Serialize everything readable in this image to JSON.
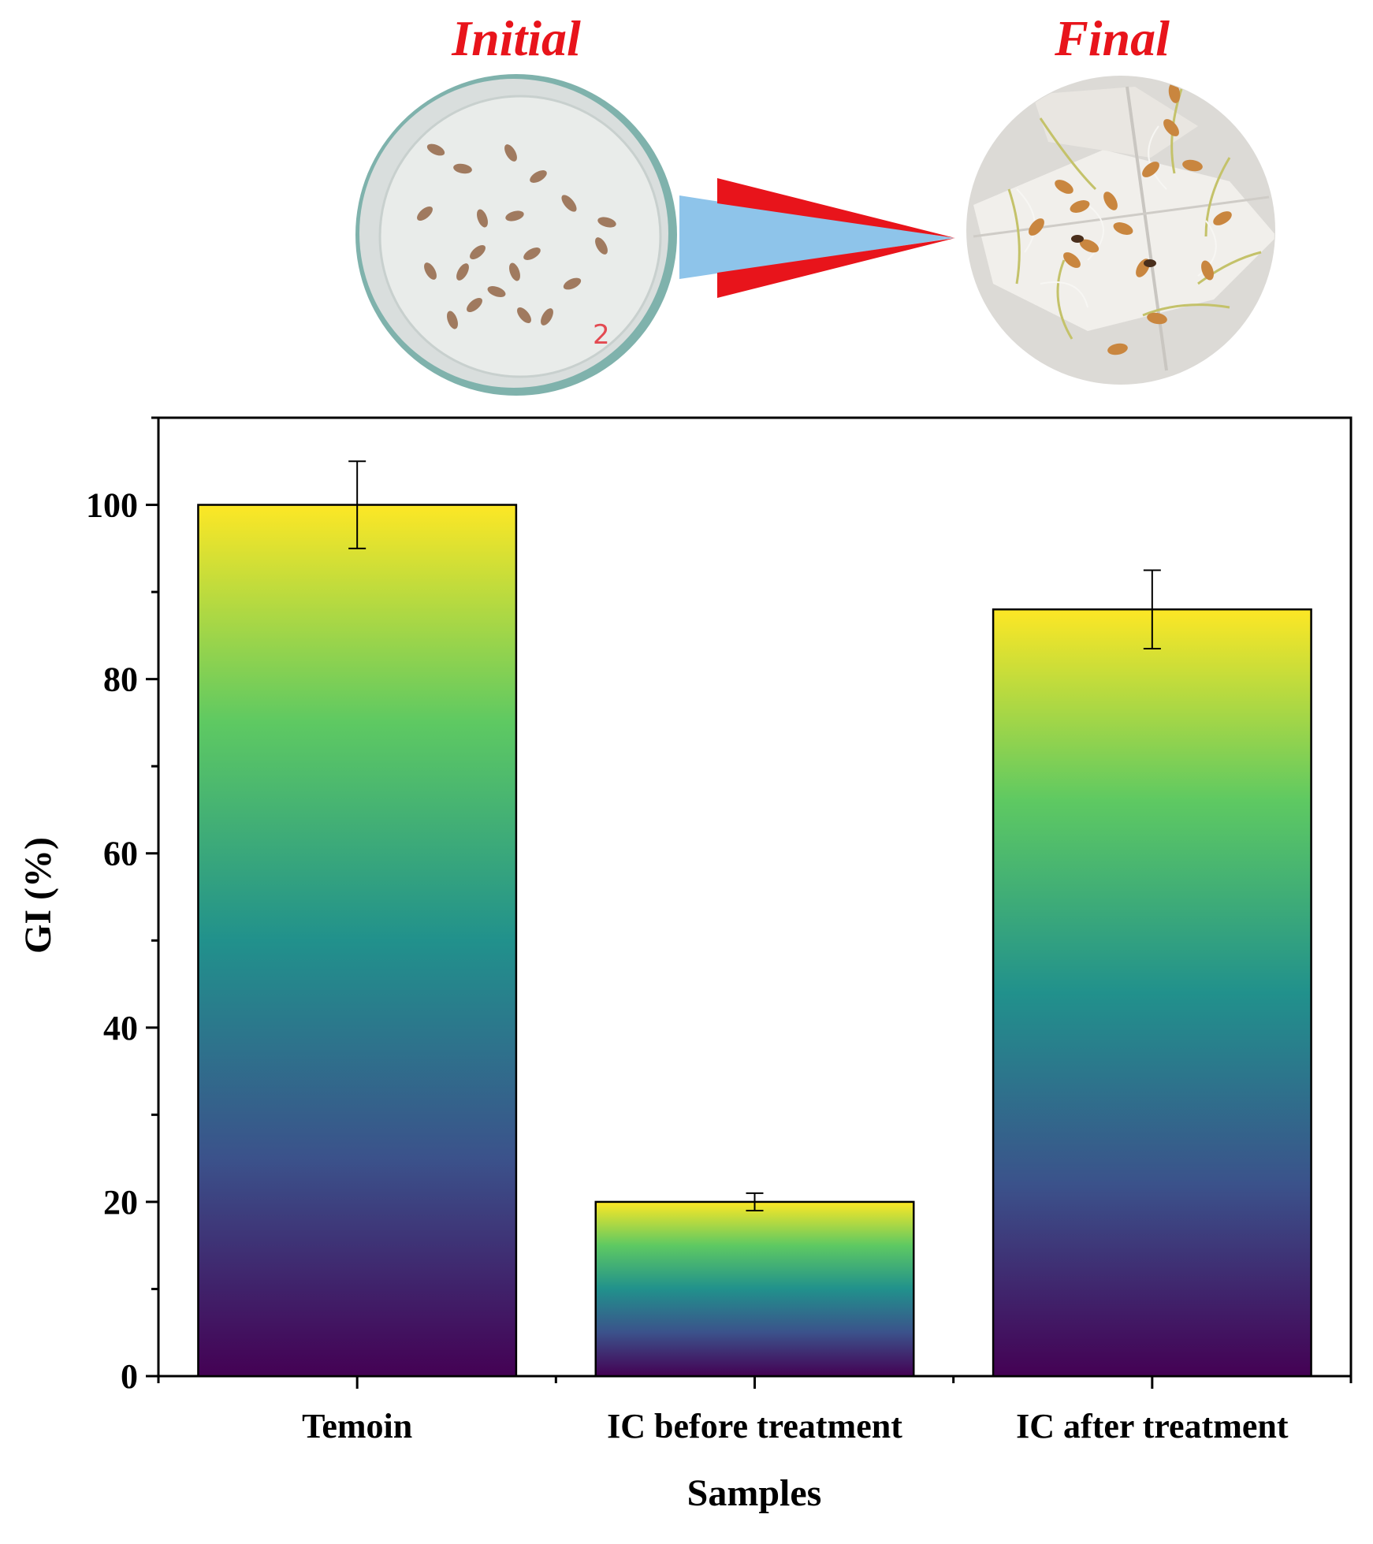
{
  "illustration": {
    "initial_label": "Initial",
    "final_label": "Final",
    "dish_marking": "2",
    "colors": {
      "label_red": "#e8141b",
      "arrow_blue": "#8ec4ea",
      "arrow_red": "#e8141b"
    }
  },
  "chart_data": {
    "type": "bar",
    "categories": [
      "Temoin",
      "IC before treatment",
      "IC after treatment"
    ],
    "values": [
      100,
      20,
      88
    ],
    "errors": [
      5,
      1,
      4.5
    ],
    "xlabel": "Samples",
    "ylabel": "GI (%)",
    "ylim": [
      0,
      110
    ],
    "yticks": [
      0,
      20,
      40,
      60,
      80,
      100
    ],
    "grid": false,
    "legend": false,
    "bar_fill": "viridis gradient (purple at base, yellow at top)",
    "colors": {
      "viridis": [
        "#440154",
        "#3b528b",
        "#21918c",
        "#5ec962",
        "#fde725"
      ]
    }
  }
}
